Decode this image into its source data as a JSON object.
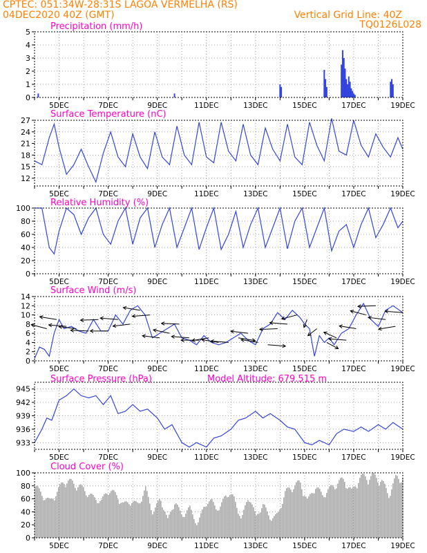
{
  "header": {
    "line1_left": "CPTEC:   051:34W-28:31S   LAGOA VERMELHA (RS)",
    "line2_left": "04DEC2020 40Z (GMT)",
    "line2_right": "Vertical Grid Line: 40Z",
    "line3_right": "TQ0126L028"
  },
  "colors": {
    "header": "#ff8000",
    "panel_title": "#ff00cc",
    "series": "#3344dd",
    "wind_arrows": "#000000",
    "cloud": "#a8a8a8",
    "grid": "#888888"
  },
  "chart_data": [
    {
      "id": "precipitation",
      "type": "bar",
      "title": "Precipitation (mm/h)",
      "ylim": [
        0,
        5
      ],
      "yticks": [
        0,
        1,
        2,
        3,
        4,
        5
      ],
      "xticks": [
        "5DEC",
        "7DEC",
        "9DEC",
        "11DEC",
        "13DEC",
        "15DEC",
        "17DEC",
        "19DEC"
      ],
      "t": [
        0.15,
        5.7,
        10.0,
        10.05,
        11.8,
        11.85,
        11.9,
        12.5,
        12.55,
        12.6,
        12.65,
        12.7,
        12.75,
        12.8,
        12.85,
        12.9,
        12.95,
        13.0,
        13.05,
        14.5,
        14.55,
        14.6
      ],
      "values": [
        0.3,
        0.3,
        1.0,
        0.8,
        2.1,
        1.4,
        0.8,
        2.5,
        3.6,
        3.0,
        2.2,
        1.4,
        1.0,
        1.6,
        1.2,
        0.7,
        0.5,
        0.3,
        0.2,
        1.2,
        1.4,
        1.0
      ]
    },
    {
      "id": "temperature",
      "type": "line",
      "title": "Surface Temperature (nC)",
      "ylim": [
        10,
        27
      ],
      "yticks": [
        12,
        15,
        18,
        21,
        24,
        27
      ],
      "xticks": [
        "5DEC",
        "7DEC",
        "9DEC",
        "11DEC",
        "13DEC",
        "15DEC",
        "17DEC",
        "19DEC"
      ],
      "t": [
        0,
        0.3,
        0.6,
        0.8,
        1.0,
        1.3,
        1.6,
        1.9,
        2.2,
        2.5,
        2.8,
        3.1,
        3.4,
        3.7,
        4.0,
        4.3,
        4.6,
        4.9,
        5.2,
        5.5,
        5.8,
        6.1,
        6.4,
        6.7,
        7.0,
        7.3,
        7.6,
        7.9,
        8.2,
        8.5,
        8.8,
        9.1,
        9.4,
        9.7,
        10.0,
        10.3,
        10.6,
        10.9,
        11.2,
        11.5,
        11.8,
        12.1,
        12.4,
        12.7,
        13.0,
        13.3,
        13.6,
        13.9,
        14.2,
        14.5,
        14.8,
        15.0
      ],
      "values": [
        16.5,
        15.5,
        22.5,
        26.0,
        20.0,
        13.0,
        15.5,
        19.5,
        15.0,
        11.0,
        18.5,
        24.0,
        17.5,
        15.0,
        23.5,
        17.5,
        14.5,
        24.0,
        17.5,
        15.5,
        25.5,
        18.0,
        15.5,
        26.5,
        17.5,
        16.0,
        26.5,
        19.0,
        16.5,
        26.0,
        18.0,
        15.5,
        25.0,
        19.5,
        16.5,
        26.0,
        17.5,
        15.5,
        26.5,
        20.5,
        16.5,
        27.5,
        19.0,
        18.0,
        27.0,
        20.5,
        17.5,
        23.5,
        20.0,
        17.5,
        22.5,
        19.5
      ]
    },
    {
      "id": "humidity",
      "type": "line",
      "title": "Relative Humidity (%)",
      "ylim": [
        0,
        100
      ],
      "yticks": [
        0,
        20,
        40,
        60,
        80,
        100
      ],
      "xticks": [
        "5DEC",
        "7DEC",
        "9DEC",
        "11DEC",
        "13DEC",
        "15DEC",
        "17DEC",
        "19DEC"
      ],
      "t": [
        0,
        0.3,
        0.6,
        0.8,
        1.0,
        1.3,
        1.6,
        1.9,
        2.2,
        2.5,
        2.8,
        3.1,
        3.4,
        3.7,
        4.0,
        4.3,
        4.6,
        4.9,
        5.2,
        5.5,
        5.8,
        6.1,
        6.4,
        6.7,
        7.0,
        7.3,
        7.6,
        7.9,
        8.2,
        8.5,
        8.8,
        9.1,
        9.4,
        9.7,
        10.0,
        10.3,
        10.6,
        10.9,
        11.2,
        11.5,
        11.8,
        12.1,
        12.4,
        12.7,
        13.0,
        13.3,
        13.6,
        13.9,
        14.2,
        14.5,
        14.8,
        15.0
      ],
      "values": [
        100,
        100,
        40,
        30,
        65,
        100,
        90,
        60,
        85,
        100,
        60,
        45,
        80,
        100,
        45,
        85,
        100,
        40,
        75,
        100,
        40,
        70,
        100,
        37,
        70,
        100,
        37,
        60,
        95,
        40,
        75,
        100,
        40,
        70,
        100,
        38,
        80,
        100,
        40,
        70,
        100,
        35,
        65,
        75,
        40,
        75,
        100,
        55,
        75,
        100,
        70,
        80
      ]
    },
    {
      "id": "wind",
      "type": "line",
      "title": "Surface Wind (m/s)",
      "ylim": [
        0,
        14
      ],
      "yticks": [
        0,
        2,
        4,
        6,
        8,
        10,
        12,
        14
      ],
      "xticks": [
        "5DEC",
        "7DEC",
        "9DEC",
        "11DEC",
        "13DEC",
        "15DEC",
        "17DEC",
        "19DEC"
      ],
      "t": [
        0,
        0.2,
        0.4,
        0.6,
        0.8,
        1.0,
        1.2,
        1.5,
        1.8,
        2.1,
        2.4,
        2.7,
        3.0,
        3.3,
        3.6,
        3.9,
        4.2,
        4.5,
        4.8,
        5.1,
        5.4,
        5.7,
        6.0,
        6.3,
        6.6,
        6.9,
        7.2,
        7.5,
        7.8,
        8.1,
        8.4,
        8.7,
        9.0,
        9.3,
        9.6,
        9.9,
        10.2,
        10.5,
        10.8,
        11.0,
        11.2,
        11.4,
        11.6,
        11.8,
        12.0,
        12.2,
        12.5,
        12.8,
        13.1,
        13.4,
        13.7,
        14.0,
        14.3,
        14.6,
        15.0
      ],
      "values": [
        0.5,
        3.0,
        2.5,
        1.0,
        6.0,
        9.0,
        7.0,
        7.5,
        6.5,
        6.0,
        9.0,
        6.5,
        6.5,
        10.0,
        8.0,
        11.0,
        12.0,
        10.0,
        5.0,
        6.0,
        7.0,
        8.0,
        5.0,
        4.5,
        3.5,
        5.5,
        4.0,
        3.5,
        4.0,
        5.0,
        6.0,
        4.5,
        3.5,
        7.0,
        8.0,
        10.5,
        9.0,
        11.0,
        9.5,
        8.0,
        7.0,
        1.0,
        5.5,
        4.0,
        5.0,
        3.5,
        6.0,
        7.0,
        10.0,
        12.5,
        9.0,
        7.5,
        11.0,
        12.0,
        10.5
      ]
    },
    {
      "id": "pressure",
      "type": "line",
      "title": "Surface Pressure (hPa)",
      "annotation": "Model Altitude: 679.515 m",
      "ylim": [
        931.5,
        946.5
      ],
      "yticks": [
        933,
        936,
        939,
        942,
        945
      ],
      "xticks": [
        "5DEC",
        "7DEC",
        "9DEC",
        "11DEC",
        "13DEC",
        "15DEC",
        "17DEC",
        "19DEC"
      ],
      "t": [
        0,
        0.3,
        0.5,
        0.7,
        1.0,
        1.3,
        1.6,
        1.9,
        2.2,
        2.5,
        2.8,
        3.1,
        3.4,
        3.7,
        4.0,
        4.3,
        4.6,
        5.0,
        5.3,
        5.6,
        6.0,
        6.3,
        6.6,
        7.0,
        7.3,
        7.6,
        8.0,
        8.3,
        8.6,
        9.0,
        9.3,
        9.6,
        10.0,
        10.3,
        10.6,
        11.0,
        11.3,
        11.6,
        12.0,
        12.3,
        12.6,
        13.0,
        13.3,
        13.6,
        14.0,
        14.3,
        14.6,
        15.0
      ],
      "values": [
        933,
        936,
        938.5,
        938,
        942.5,
        943.5,
        945,
        943.5,
        943,
        943.5,
        941.5,
        943.5,
        939.5,
        940,
        941.5,
        940,
        940.5,
        938.5,
        936,
        937,
        933,
        932,
        933,
        932,
        934,
        934.5,
        936,
        938,
        938.5,
        940,
        938.5,
        939.5,
        938,
        936.5,
        936,
        933,
        932.5,
        933.5,
        932.5,
        935,
        936,
        935.5,
        936.5,
        935.5,
        937,
        936,
        937.5,
        936
      ]
    },
    {
      "id": "cloud",
      "type": "area",
      "title": "Cloud Cover (%)",
      "ylim": [
        0,
        100
      ],
      "yticks": [
        0,
        20,
        40,
        60,
        80,
        100
      ],
      "xticks": [
        "5DEC",
        "7DEC",
        "9DEC",
        "11DEC",
        "13DEC",
        "15DEC",
        "17DEC",
        "19DEC"
      ],
      "t": [
        0,
        0.3,
        0.6,
        0.9,
        1.2,
        1.5,
        1.8,
        2.1,
        2.4,
        2.7,
        3.0,
        3.3,
        3.6,
        3.9,
        4.2,
        4.5,
        4.8,
        5.1,
        5.4,
        5.7,
        6.0,
        6.3,
        6.6,
        6.9,
        7.2,
        7.5,
        7.8,
        8.1,
        8.4,
        8.7,
        9.0,
        9.3,
        9.6,
        9.9,
        10.2,
        10.5,
        10.8,
        11.1,
        11.4,
        11.7,
        12.0,
        12.3,
        12.6,
        12.9,
        13.2,
        13.5,
        13.8,
        14.1,
        14.4,
        14.7,
        15.0
      ],
      "values": [
        85,
        70,
        60,
        75,
        95,
        90,
        85,
        75,
        65,
        60,
        80,
        70,
        55,
        60,
        55,
        80,
        40,
        65,
        30,
        60,
        35,
        50,
        20,
        55,
        60,
        45,
        75,
        65,
        30,
        70,
        35,
        55,
        30,
        40,
        75,
        85,
        90,
        60,
        85,
        70,
        80,
        90,
        95,
        75,
        98,
        100,
        100,
        95,
        70,
        98,
        100
      ]
    }
  ],
  "wind_vectors": {
    "t": [
      0.5,
      0.9,
      1.3,
      1.7,
      2.2,
      2.6,
      3.0,
      3.4,
      3.9,
      4.3,
      4.7,
      5.1,
      5.5,
      5.9,
      6.3,
      6.7,
      7.1,
      7.5,
      7.9,
      8.3,
      8.7,
      9.1,
      9.5,
      9.9,
      10.3,
      10.7,
      11.1,
      11.5,
      11.9,
      12.3,
      12.7,
      13.1,
      13.5,
      13.9,
      14.3,
      14.7,
      15.0
    ],
    "speed": [
      7,
      9,
      7.5,
      7,
      6.5,
      9,
      6.5,
      9,
      8,
      11,
      10,
      5,
      6,
      8,
      5,
      4.5,
      5,
      4,
      4,
      5,
      6,
      4,
      3.5,
      7,
      8,
      10,
      9,
      7,
      4,
      5,
      4.5,
      7,
      10,
      12,
      9,
      7.5,
      10.5
    ],
    "dir": [
      30,
      20,
      10,
      15,
      5,
      355,
      0,
      10,
      345,
      20,
      350,
      15,
      25,
      5,
      10,
      0,
      340,
      20,
      10,
      200,
      15,
      20,
      190,
      355,
      10,
      330,
      280,
      300,
      230,
      45,
      10,
      20,
      30,
      355,
      15,
      340,
      10
    ]
  }
}
